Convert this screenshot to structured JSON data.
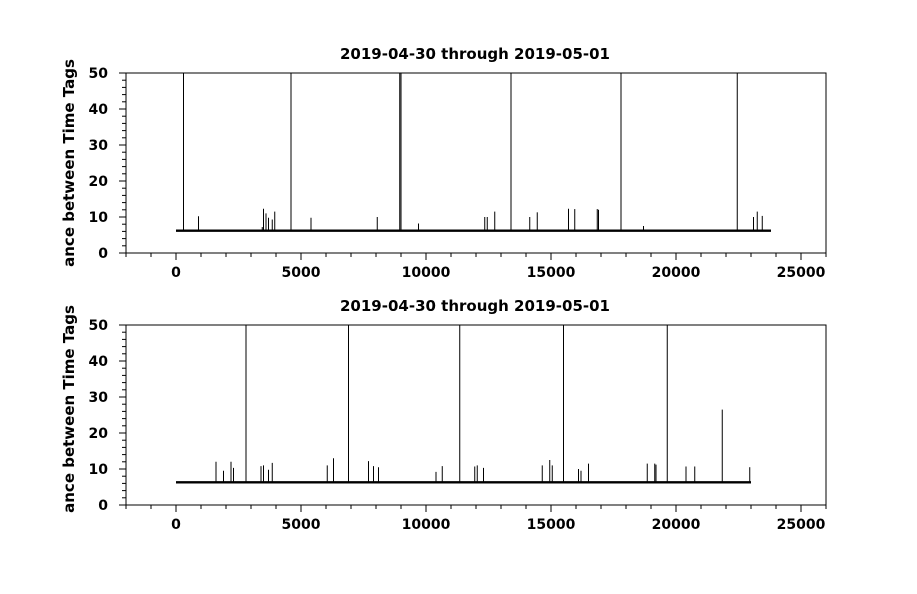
{
  "chart_data": [
    {
      "type": "line",
      "title": "2019-04-30 through 2019-05-01",
      "ylabel": "ance between Time Tags",
      "xlim": [
        -2000,
        26000
      ],
      "ylim": [
        0,
        50
      ],
      "xticks": [
        0,
        5000,
        10000,
        15000,
        20000,
        25000
      ],
      "yticks": [
        0,
        10,
        20,
        30,
        40,
        50
      ],
      "x_range": [
        0,
        23800
      ],
      "baseline": 6.2,
      "spikes": [
        {
          "x": 300,
          "y": 50
        },
        {
          "x": 900,
          "y": 10.2
        },
        {
          "x": 3450,
          "y": 7.2
        },
        {
          "x": 3500,
          "y": 12.3
        },
        {
          "x": 3600,
          "y": 11
        },
        {
          "x": 3700,
          "y": 9.8
        },
        {
          "x": 3850,
          "y": 9.3
        },
        {
          "x": 3950,
          "y": 11.5
        },
        {
          "x": 4600,
          "y": 50
        },
        {
          "x": 5400,
          "y": 9.8
        },
        {
          "x": 8050,
          "y": 10
        },
        {
          "x": 8950,
          "y": 50
        },
        {
          "x": 9000,
          "y": 50
        },
        {
          "x": 9700,
          "y": 8.2
        },
        {
          "x": 12350,
          "y": 10
        },
        {
          "x": 12450,
          "y": 10
        },
        {
          "x": 12750,
          "y": 11.5
        },
        {
          "x": 13400,
          "y": 50
        },
        {
          "x": 14150,
          "y": 10
        },
        {
          "x": 14450,
          "y": 11.3
        },
        {
          "x": 15700,
          "y": 12.3
        },
        {
          "x": 15950,
          "y": 12.2
        },
        {
          "x": 16850,
          "y": 12.2
        },
        {
          "x": 16900,
          "y": 12
        },
        {
          "x": 17800,
          "y": 50
        },
        {
          "x": 18700,
          "y": 7.5
        },
        {
          "x": 22450,
          "y": 50
        },
        {
          "x": 23100,
          "y": 10
        },
        {
          "x": 23250,
          "y": 11.5
        },
        {
          "x": 23450,
          "y": 10.3
        }
      ]
    },
    {
      "type": "line",
      "title": "2019-04-30 through 2019-05-01",
      "ylabel": "ance between Time Tags",
      "xlim": [
        -2000,
        26000
      ],
      "ylim": [
        0,
        50
      ],
      "xticks": [
        0,
        5000,
        10000,
        15000,
        20000,
        25000
      ],
      "yticks": [
        0,
        10,
        20,
        30,
        40,
        50
      ],
      "x_range": [
        0,
        23000
      ],
      "baseline": 6.3,
      "spikes": [
        {
          "x": 1600,
          "y": 12
        },
        {
          "x": 1900,
          "y": 9.5
        },
        {
          "x": 2200,
          "y": 12
        },
        {
          "x": 2300,
          "y": 10.3
        },
        {
          "x": 2800,
          "y": 50
        },
        {
          "x": 3400,
          "y": 10.8
        },
        {
          "x": 3500,
          "y": 11
        },
        {
          "x": 3700,
          "y": 9.8
        },
        {
          "x": 3850,
          "y": 11.7
        },
        {
          "x": 6050,
          "y": 11
        },
        {
          "x": 6300,
          "y": 13
        },
        {
          "x": 6900,
          "y": 50
        },
        {
          "x": 7700,
          "y": 12.2
        },
        {
          "x": 7900,
          "y": 10.8
        },
        {
          "x": 8100,
          "y": 10.5
        },
        {
          "x": 10400,
          "y": 9.2
        },
        {
          "x": 10650,
          "y": 10.8
        },
        {
          "x": 11350,
          "y": 50
        },
        {
          "x": 11950,
          "y": 10.7
        },
        {
          "x": 12050,
          "y": 11
        },
        {
          "x": 12300,
          "y": 10.3
        },
        {
          "x": 14650,
          "y": 11
        },
        {
          "x": 14950,
          "y": 12.5
        },
        {
          "x": 15050,
          "y": 11
        },
        {
          "x": 15500,
          "y": 50
        },
        {
          "x": 16100,
          "y": 10
        },
        {
          "x": 16200,
          "y": 9.5
        },
        {
          "x": 16500,
          "y": 11.5
        },
        {
          "x": 18850,
          "y": 11.5
        },
        {
          "x": 19150,
          "y": 11.5
        },
        {
          "x": 19200,
          "y": 11.2
        },
        {
          "x": 19650,
          "y": 50
        },
        {
          "x": 20400,
          "y": 10.7
        },
        {
          "x": 20750,
          "y": 10.7
        },
        {
          "x": 21850,
          "y": 26.5
        },
        {
          "x": 22950,
          "y": 10.5
        }
      ]
    }
  ]
}
